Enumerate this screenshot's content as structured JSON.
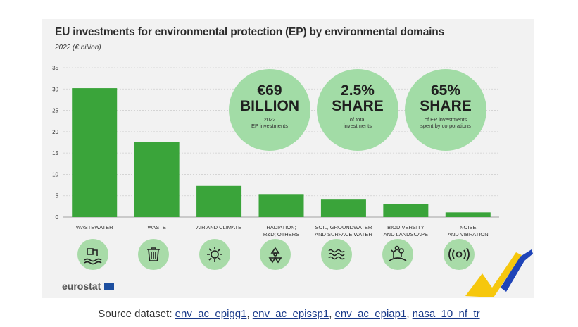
{
  "chart_data": {
    "type": "bar",
    "title": "EU investments for environmental protection (EP) by environmental domains",
    "subtitle": "2022 (€ billion)",
    "categories": [
      [
        "WASTEWATER"
      ],
      [
        "WASTE"
      ],
      [
        "AIR AND CLIMATE"
      ],
      [
        "RADIATION;",
        "R&D; OTHERS"
      ],
      [
        "SOIL, GROUNDWATER",
        "AND SURFACE WATER"
      ],
      [
        "BIODIVERSITY",
        "AND LANDSCAPE"
      ],
      [
        "NOISE",
        "AND VIBRATION"
      ]
    ],
    "values": [
      30.2,
      17.6,
      7.3,
      5.4,
      4.1,
      3.0,
      1.1
    ],
    "ylim": [
      0,
      35
    ],
    "yticks": [
      0,
      5,
      10,
      15,
      20,
      25,
      30,
      35
    ],
    "grid": true,
    "bar_color": "#3aa43a"
  },
  "icons": [
    "wastewater-icon",
    "waste-bin-icon",
    "air-climate-icon",
    "radiation-icon",
    "water-waves-icon",
    "biodiversity-icon",
    "noise-icon"
  ],
  "stats": [
    {
      "big1": "€69",
      "big2": "BILLION",
      "small1": "2022",
      "small2": "EP investments"
    },
    {
      "big1": "2.5%",
      "big2": "SHARE",
      "small1": "of total",
      "small2": "investments"
    },
    {
      "big1": "65%",
      "big2": "SHARE",
      "small1": "of EP investments",
      "small2": "spent by corporations"
    }
  ],
  "logo": "eurostat",
  "source": {
    "label": "Source dataset:",
    "links": [
      "env_ac_epigg1",
      "env_ac_epissp1",
      "env_ac_epiap1",
      "nasa_10_nf_tr"
    ]
  },
  "colors": {
    "panel": "#f2f2f2",
    "bar": "#3aa43a",
    "circle": "#a2dca6",
    "icon_circle": "#a8dba8"
  }
}
